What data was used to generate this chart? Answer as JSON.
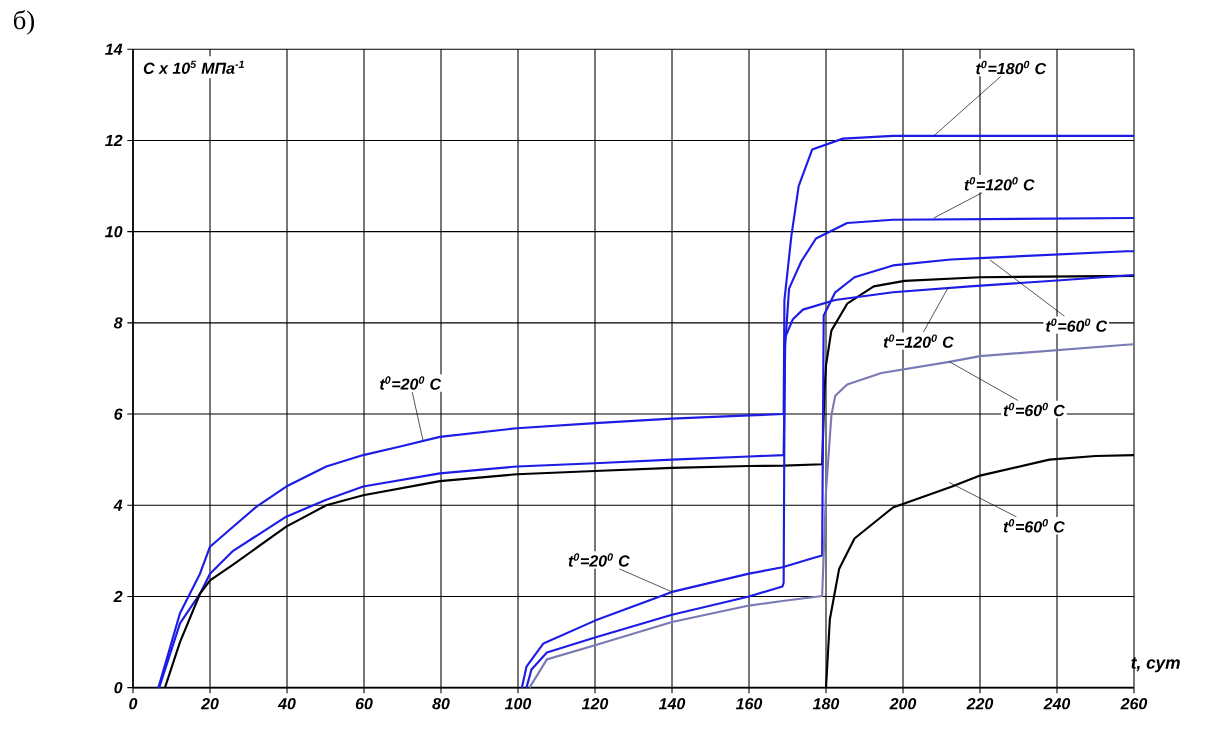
{
  "chart_data": {
    "type": "line",
    "title": "б)",
    "xlabel": "t, сут",
    "ylabel": "C x 10$^{5}$  МПа$^{-1}$",
    "xlim": [
      0,
      260
    ],
    "ylim": [
      0,
      14
    ],
    "xticks": [
      0,
      20,
      40,
      60,
      80,
      100,
      120,
      140,
      160,
      180,
      200,
      220,
      240,
      260
    ],
    "yticks": [
      0,
      2,
      4,
      6,
      8,
      10,
      12,
      14
    ],
    "grid": true,
    "series": [
      {
        "color": "#1c1ce6",
        "x": [
          6.6,
          12.2,
          17.4,
          20,
          26,
          32.1,
          39.8,
          50.2,
          59.8,
          69.4,
          79.7,
          99.7,
          120,
          140,
          160,
          169,
          169.2,
          171,
          172.9,
          176.4,
          184.4,
          197.4,
          260
        ],
        "values": [
          0,
          1.63,
          2.5,
          3.09,
          3.53,
          3.97,
          4.41,
          4.85,
          5.1,
          5.29,
          5.5,
          5.69,
          5.8,
          5.9,
          5.97,
          6.0,
          8.5,
          9.9,
          11.0,
          11.8,
          12.04,
          12.1,
          12.1
        ]
      },
      {
        "color": "#1c1ce6",
        "x": [
          6.8,
          12.2,
          17.4,
          20,
          26,
          39.8,
          50.2,
          59.8,
          79.7,
          99.7,
          120,
          140,
          160,
          169,
          169.4,
          170.4,
          173.6,
          177.4,
          185.5,
          197.4,
          260
        ],
        "values": [
          0,
          1.41,
          2.06,
          2.5,
          3.0,
          3.75,
          4.12,
          4.41,
          4.7,
          4.85,
          4.92,
          5.0,
          5.07,
          5.1,
          7.5,
          8.75,
          9.35,
          9.85,
          10.19,
          10.26,
          10.3
        ]
      },
      {
        "color": "#000000",
        "x": [
          8.3,
          12.2,
          17.4,
          20,
          26,
          39.8,
          50.2,
          59.8,
          79.7,
          99.7,
          120,
          140,
          160,
          169,
          179,
          179.6,
          180,
          181.4,
          185.5,
          192.4,
          200.4,
          220,
          260
        ],
        "values": [
          0,
          1.0,
          2.06,
          2.35,
          2.7,
          3.53,
          4.0,
          4.22,
          4.53,
          4.68,
          4.75,
          4.82,
          4.86,
          4.87,
          4.9,
          6.5,
          7.07,
          7.83,
          8.42,
          8.8,
          8.92,
          9.0,
          9.03
        ]
      },
      {
        "color": "#1c1ce6",
        "x": [
          101,
          102.2,
          106.6,
          120,
          140,
          160,
          168.7,
          176.9,
          179,
          179.4,
          182.4,
          187.4,
          197.4,
          212.4,
          220,
          258,
          260
        ],
        "values": [
          0,
          0.46,
          0.97,
          1.47,
          2.1,
          2.5,
          2.64,
          2.85,
          2.9,
          8.16,
          8.67,
          9.0,
          9.26,
          9.39,
          9.42,
          9.57,
          9.57
        ]
      },
      {
        "color": "#1c1ce6",
        "x": [
          102.2,
          103.5,
          107.5,
          120,
          140,
          160,
          168.7,
          169,
          169.3,
          171.4,
          174,
          182.4,
          197.4,
          217.4,
          240,
          260
        ],
        "values": [
          0,
          0.4,
          0.77,
          1.1,
          1.6,
          2.0,
          2.22,
          2.3,
          7.66,
          8.08,
          8.29,
          8.5,
          8.67,
          8.8,
          8.93,
          9.05
        ]
      },
      {
        "color": "#7a7ab4",
        "x": [
          103,
          107.5,
          120,
          140,
          160,
          168.7,
          179,
          180,
          181.4,
          182.4,
          185.5,
          194.4,
          212.4,
          220,
          258,
          260
        ],
        "values": [
          0,
          0.62,
          0.93,
          1.44,
          1.8,
          1.9,
          2.01,
          4.3,
          5.97,
          6.4,
          6.65,
          6.9,
          7.15,
          7.27,
          7.52,
          7.53
        ]
      },
      {
        "color": "#000000",
        "x": [
          180,
          181,
          183.4,
          187.4,
          197.4,
          212.4,
          220,
          238,
          250,
          260
        ],
        "values": [
          0,
          1.5,
          2.6,
          3.27,
          3.95,
          4.4,
          4.65,
          5.0,
          5.08,
          5.1
        ]
      }
    ],
    "annotations": [
      {
        "text": "t$^{0}$=20$^{0}$ C",
        "x": 75.3,
        "y": 5.43
      },
      {
        "text": "t$^{0}$=20$^{0}$ C",
        "x": 140,
        "y": 2.1
      },
      {
        "text": "t$^{0}$=180$^{0}$ C",
        "x": 208,
        "y": 12.1
      },
      {
        "text": "t$^{0}$=120$^{0}$ C",
        "x": 208,
        "y": 10.3
      },
      {
        "text": "t$^{0}$=120$^{0}$ C",
        "x": 211.7,
        "y": 8.77
      },
      {
        "text": "t$^{0}$=60$^{0}$ C",
        "x": 222.6,
        "y": 9.38
      },
      {
        "text": "t$^{0}$=60$^{0}$ C",
        "x": 212,
        "y": 7.15
      },
      {
        "text": "t$^{0}$=60$^{0}$ C",
        "x": 212,
        "y": 4.5
      }
    ]
  }
}
